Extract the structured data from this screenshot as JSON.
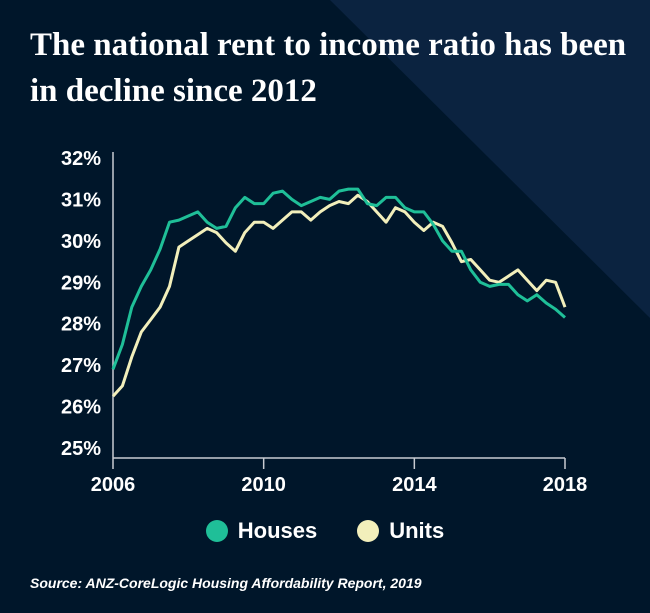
{
  "title": "The national rent to income ratio has been in decline since 2012",
  "source": "Source: ANZ-CoreLogic Housing Affordability Report, 2019",
  "colors": {
    "background": "#00162a",
    "background_accent": "#0b2340",
    "houses": "#1fbf98",
    "units": "#f2efbb"
  },
  "chart_data": {
    "type": "line",
    "title": "The national rent to income ratio has been in decline since 2012",
    "xlim": [
      2006,
      2018
    ],
    "ylim": [
      25,
      32
    ],
    "x_ticks": [
      "2006",
      "2010",
      "2014",
      "2018"
    ],
    "y_ticks": [
      "25%",
      "26%",
      "27%",
      "28%",
      "29%",
      "30%",
      "31%",
      "32%"
    ],
    "grid": false,
    "legend": "bottom",
    "x": [
      2006,
      2006.25,
      2006.5,
      2006.75,
      2007,
      2007.25,
      2007.5,
      2007.75,
      2008,
      2008.25,
      2008.5,
      2008.75,
      2009,
      2009.25,
      2009.5,
      2009.75,
      2010,
      2010.25,
      2010.5,
      2010.75,
      2011,
      2011.25,
      2011.5,
      2011.75,
      2012,
      2012.25,
      2012.5,
      2012.75,
      2013,
      2013.25,
      2013.5,
      2013.75,
      2014,
      2014.25,
      2014.5,
      2014.75,
      2015,
      2015.25,
      2015.5,
      2015.75,
      2016,
      2016.25,
      2016.5,
      2016.75,
      2017,
      2017.25,
      2017.5,
      2017.75,
      2018
    ],
    "series": [
      {
        "name": "Houses",
        "color": "#1fbf98",
        "values": [
          26.9,
          27.5,
          28.4,
          28.9,
          29.3,
          29.8,
          30.45,
          30.5,
          30.6,
          30.7,
          30.45,
          30.3,
          30.35,
          30.8,
          31.05,
          30.9,
          30.9,
          31.15,
          31.2,
          31.0,
          30.85,
          30.95,
          31.05,
          31.0,
          31.2,
          31.25,
          31.25,
          30.9,
          30.85,
          31.05,
          31.05,
          30.8,
          30.7,
          30.7,
          30.4,
          30.0,
          29.75,
          29.75,
          29.3,
          29.0,
          28.9,
          28.95,
          28.95,
          28.7,
          28.55,
          28.7,
          28.5,
          28.35,
          28.15
        ]
      },
      {
        "name": "Units",
        "color": "#f2efbb",
        "values": [
          26.25,
          26.5,
          27.2,
          27.8,
          28.1,
          28.4,
          28.9,
          29.85,
          30.0,
          30.15,
          30.3,
          30.2,
          29.95,
          29.75,
          30.2,
          30.45,
          30.45,
          30.3,
          30.5,
          30.7,
          30.7,
          30.5,
          30.7,
          30.85,
          30.95,
          30.9,
          31.1,
          30.95,
          30.7,
          30.45,
          30.8,
          30.7,
          30.45,
          30.25,
          30.45,
          30.35,
          29.95,
          29.5,
          29.55,
          29.3,
          29.05,
          29.0,
          29.15,
          29.3,
          29.05,
          28.8,
          29.05,
          29.0,
          28.4
        ]
      }
    ]
  }
}
